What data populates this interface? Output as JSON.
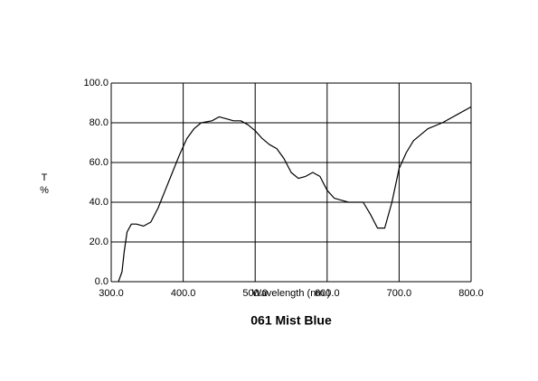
{
  "chart_data": {
    "type": "line",
    "title": "061 Mist Blue",
    "xlabel": "Wavelength (nm.)",
    "ylabel": [
      "T",
      "%"
    ],
    "x": [
      310,
      315,
      318,
      322,
      328,
      335,
      345,
      355,
      365,
      375,
      385,
      395,
      405,
      415,
      425,
      440,
      450,
      460,
      470,
      480,
      490,
      500,
      510,
      520,
      530,
      540,
      550,
      560,
      570,
      580,
      590,
      600,
      610,
      620,
      630,
      640,
      650,
      660,
      670,
      680,
      690,
      700,
      710,
      720,
      740,
      760,
      780,
      800
    ],
    "values": [
      0,
      5,
      15,
      25,
      29,
      29,
      28,
      30,
      37,
      46,
      55,
      64,
      72,
      77,
      80,
      81,
      83,
      82,
      81,
      81,
      79,
      76,
      72,
      69,
      67,
      62,
      55,
      52,
      53,
      55,
      53,
      46,
      42,
      41,
      40,
      40,
      40,
      34,
      27,
      27,
      40,
      57,
      65,
      71,
      77,
      80,
      84,
      88
    ],
    "color": "#000000",
    "xlim": [
      300,
      800
    ],
    "ylim": [
      0,
      100
    ],
    "xticks": [
      {
        "value": 300,
        "label": "300.0"
      },
      {
        "value": 400,
        "label": "400.0"
      },
      {
        "value": 500,
        "label": "500.0"
      },
      {
        "value": 600,
        "label": "600.0"
      },
      {
        "value": 700,
        "label": "700.0"
      },
      {
        "value": 800,
        "label": "800.0"
      }
    ],
    "yticks": [
      {
        "value": 0,
        "label": "0.0"
      },
      {
        "value": 20,
        "label": "20.0"
      },
      {
        "value": 40,
        "label": "40.0"
      },
      {
        "value": 60,
        "label": "60.0"
      },
      {
        "value": 80,
        "label": "80.0"
      },
      {
        "value": 100,
        "label": "100.0"
      }
    ],
    "grid": true
  }
}
